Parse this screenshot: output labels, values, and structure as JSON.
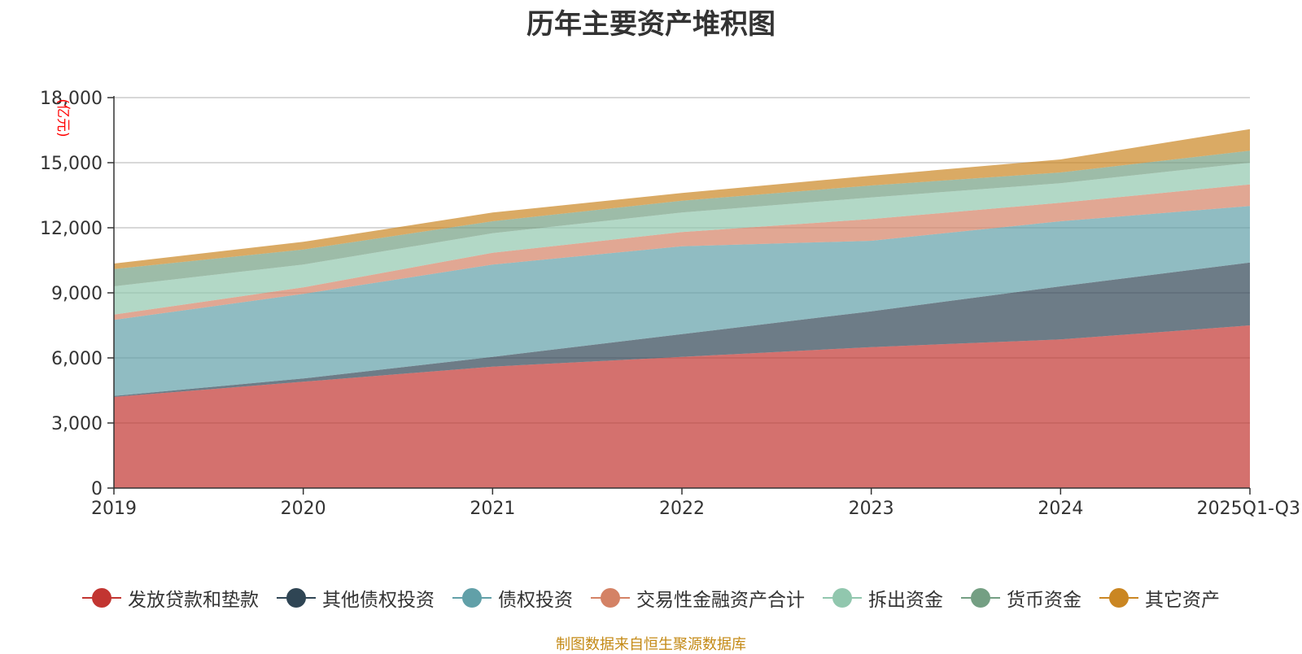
{
  "chart_data": {
    "type": "area",
    "stacked": true,
    "title": "历年主要资产堆积图",
    "ylabel": "(亿元)",
    "xlabel": "",
    "categories": [
      "2019",
      "2020",
      "2021",
      "2022",
      "2023",
      "2024",
      "2025Q1-Q3"
    ],
    "ylim": [
      0,
      18000
    ],
    "yticks": [
      0,
      3000,
      6000,
      9000,
      12000,
      15000,
      18000
    ],
    "ytick_labels": [
      "0",
      "3,000",
      "6,000",
      "9,000",
      "12,000",
      "15,000",
      "18,000"
    ],
    "grid": true,
    "legend_position": "bottom",
    "series": [
      {
        "name": "发放贷款和垫款",
        "color": "#c23531",
        "values": [
          4200,
          4900,
          5600,
          6050,
          6500,
          6850,
          7500
        ]
      },
      {
        "name": "其他债权投资",
        "color": "#2f4554",
        "values": [
          50,
          150,
          450,
          1050,
          1650,
          2450,
          2900
        ]
      },
      {
        "name": "债权投资",
        "color": "#61a0a8",
        "values": [
          3500,
          3900,
          4250,
          4050,
          3250,
          3000,
          2600
        ]
      },
      {
        "name": "交易性金融资产合计",
        "color": "#d48265",
        "values": [
          250,
          300,
          550,
          650,
          1000,
          850,
          1000
        ]
      },
      {
        "name": "拆出资金",
        "color": "#91c7ae",
        "values": [
          1300,
          1050,
          900,
          900,
          1000,
          900,
          1000
        ]
      },
      {
        "name": "货币资金",
        "color": "#749f83",
        "values": [
          800,
          700,
          550,
          550,
          550,
          500,
          550
        ]
      },
      {
        "name": "其它资产",
        "color": "#ca8622",
        "values": [
          250,
          350,
          400,
          350,
          450,
          600,
          1000
        ]
      }
    ],
    "source_note": "制图数据来自恒生聚源数据库"
  }
}
